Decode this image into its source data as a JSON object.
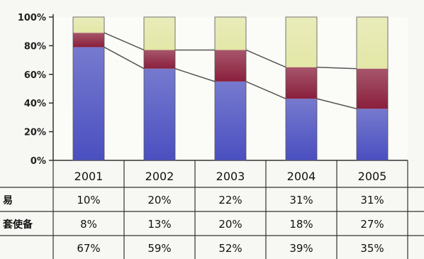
{
  "chart_data": {
    "type": "bar",
    "stacked": true,
    "percent_stacked": true,
    "categories": [
      "2001",
      "2002",
      "2003",
      "2004",
      "2005"
    ],
    "yticks": [
      "0%",
      "20%",
      "40%",
      "60%",
      "80%",
      "100%"
    ],
    "ylim": [
      0,
      100
    ],
    "series": [
      {
        "color": "#4a4fc0",
        "values": [
          79,
          64,
          55,
          43,
          36
        ]
      },
      {
        "color": "#8a1f3c",
        "values": [
          10,
          13,
          22,
          22,
          28
        ]
      },
      {
        "color": "#e3e7a6",
        "values": [
          11,
          23,
          23,
          35,
          36
        ]
      }
    ],
    "connector_lines": [
      {
        "values": [
          89,
          77,
          77,
          65,
          64
        ]
      },
      {
        "values": [
          79,
          64,
          55,
          43,
          36
        ]
      }
    ],
    "table": {
      "rows": [
        {
          "label": "易",
          "values": [
            "10%",
            "20%",
            "22%",
            "31%",
            "31%"
          ]
        },
        {
          "label": "套使备",
          "values": [
            "8%",
            "13%",
            "20%",
            "18%",
            "27%"
          ]
        },
        {
          "label": "",
          "values": [
            "67%",
            "59%",
            "52%",
            "39%",
            "35%"
          ]
        }
      ]
    },
    "grid": false,
    "legend": "none"
  }
}
